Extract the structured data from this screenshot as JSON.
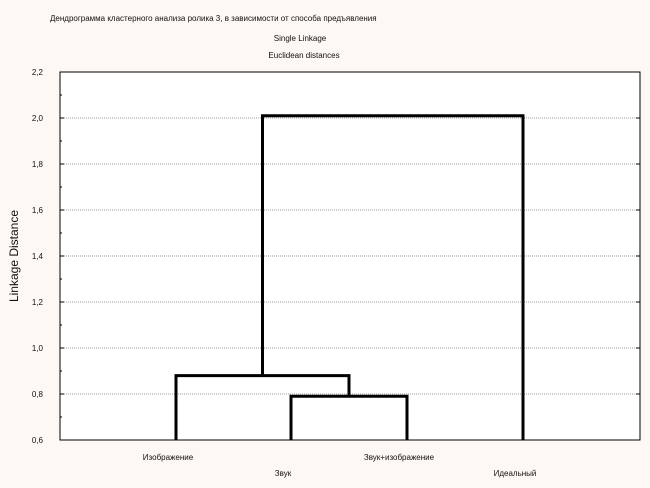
{
  "chart_data": {
    "type": "dendrogram",
    "header": "Дендрограмма кластерного анализа ролика 3, в зависимости от способа предъявления",
    "title": "Single Linkage",
    "subtitle": "Euclidean distances",
    "ylabel": "Linkage Distance",
    "ylim": [
      0.6,
      2.2
    ],
    "yticks": [
      "0,6",
      "0,8",
      "1,0",
      "1,2",
      "1,4",
      "1,6",
      "1,8",
      "2,0",
      "2,2"
    ],
    "leaves": [
      "Изображение",
      "Звук",
      "Звук+изображение",
      "Идеальный"
    ],
    "merges": [
      {
        "left": "Звук",
        "right": "Звук+изображение",
        "distance": 0.79
      },
      {
        "left": "Изображение",
        "right": "Звук + Звук+изображение",
        "distance": 0.88
      },
      {
        "left": "Изображение + Звук + Звук+изображение",
        "right": "Идеальный",
        "distance": 2.01
      }
    ],
    "grid": true
  }
}
